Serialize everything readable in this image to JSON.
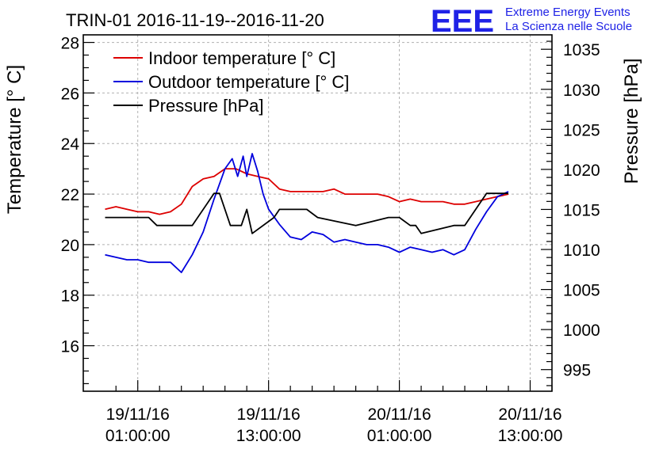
{
  "header": {
    "title": "TRIN-01 2016-11-19--2016-11-20",
    "logo_text": "EEE",
    "logo_line1": "Extreme Energy Events",
    "logo_line2": "La Scienza nelle Scuole"
  },
  "colors": {
    "indoor": "#dd0000",
    "outdoor": "#0000dd",
    "pressure": "#000000",
    "grid": "#b0b0b0",
    "logo": "#1f22e6"
  },
  "chart_data": {
    "type": "line",
    "title": "TRIN-01 2016-11-19--2016-11-20",
    "xlabel": "",
    "ylabel": "Temperature [° C]",
    "y2label": "Pressure [hPa]",
    "grid": true,
    "legend_position": "top-left",
    "xlim": [
      "2016-11-18 20:00",
      "2016-11-20 15:00"
    ],
    "ylim": [
      14.2,
      28.3
    ],
    "y2lim": [
      992.3,
      1036.8
    ],
    "x_ticks": [
      {
        "x": "2016-11-19 01:00",
        "line1": "19/11/16",
        "line2": "01:00:00"
      },
      {
        "x": "2016-11-19 13:00",
        "line1": "19/11/16",
        "line2": "13:00:00"
      },
      {
        "x": "2016-11-20 01:00",
        "line1": "20/11/16",
        "line2": "01:00:00"
      },
      {
        "x": "2016-11-20 13:00",
        "line1": "20/11/16",
        "line2": "13:00:00"
      }
    ],
    "y_ticks": [
      "16",
      "18",
      "20",
      "22",
      "24",
      "26",
      "28"
    ],
    "y2_ticks": [
      "995",
      "1000",
      "1005",
      "1010",
      "1015",
      "1020",
      "1025",
      "1030",
      "1035"
    ],
    "series": [
      {
        "name": "Indoor temperature [° C]",
        "axis": "left",
        "x": [
          "2016-11-18 22:00",
          "2016-11-18 23:00",
          "2016-11-19 00:00",
          "2016-11-19 01:00",
          "2016-11-19 02:00",
          "2016-11-19 03:00",
          "2016-11-19 04:00",
          "2016-11-19 05:00",
          "2016-11-19 06:00",
          "2016-11-19 07:00",
          "2016-11-19 08:00",
          "2016-11-19 09:00",
          "2016-11-19 10:00",
          "2016-11-19 11:00",
          "2016-11-19 12:00",
          "2016-11-19 13:00",
          "2016-11-19 14:00",
          "2016-11-19 15:00",
          "2016-11-19 16:00",
          "2016-11-19 17:00",
          "2016-11-19 18:00",
          "2016-11-19 19:00",
          "2016-11-19 20:00",
          "2016-11-19 21:00",
          "2016-11-19 22:00",
          "2016-11-19 23:00",
          "2016-11-20 00:00",
          "2016-11-20 01:00",
          "2016-11-20 02:00",
          "2016-11-20 03:00",
          "2016-11-20 04:00",
          "2016-11-20 05:00",
          "2016-11-20 06:00",
          "2016-11-20 07:00",
          "2016-11-20 08:00",
          "2016-11-20 09:00",
          "2016-11-20 10:00",
          "2016-11-20 11:00"
        ],
        "values": [
          21.4,
          21.5,
          21.4,
          21.3,
          21.3,
          21.2,
          21.3,
          21.6,
          22.3,
          22.6,
          22.7,
          23.0,
          23.0,
          22.8,
          22.7,
          22.6,
          22.2,
          22.1,
          22.1,
          22.1,
          22.1,
          22.2,
          22.0,
          22.0,
          22.0,
          22.0,
          21.9,
          21.7,
          21.8,
          21.7,
          21.7,
          21.7,
          21.6,
          21.6,
          21.7,
          21.8,
          21.9,
          22.0
        ]
      },
      {
        "name": "Outdoor temperature [° C]",
        "axis": "left",
        "x": [
          "2016-11-18 22:00",
          "2016-11-18 23:00",
          "2016-11-19 00:00",
          "2016-11-19 01:00",
          "2016-11-19 02:00",
          "2016-11-19 03:00",
          "2016-11-19 04:00",
          "2016-11-19 05:00",
          "2016-11-19 06:00",
          "2016-11-19 07:00",
          "2016-11-19 08:00",
          "2016-11-19 09:00",
          "2016-11-19 09:40",
          "2016-11-19 10:10",
          "2016-11-19 10:40",
          "2016-11-19 11:00",
          "2016-11-19 11:30",
          "2016-11-19 12:00",
          "2016-11-19 12:30",
          "2016-11-19 13:00",
          "2016-11-19 14:00",
          "2016-11-19 15:00",
          "2016-11-19 16:00",
          "2016-11-19 17:00",
          "2016-11-19 18:00",
          "2016-11-19 19:00",
          "2016-11-19 20:00",
          "2016-11-19 21:00",
          "2016-11-19 22:00",
          "2016-11-19 23:00",
          "2016-11-20 00:00",
          "2016-11-20 01:00",
          "2016-11-20 02:00",
          "2016-11-20 03:00",
          "2016-11-20 04:00",
          "2016-11-20 05:00",
          "2016-11-20 06:00",
          "2016-11-20 07:00",
          "2016-11-20 08:00",
          "2016-11-20 09:00",
          "2016-11-20 10:00",
          "2016-11-20 11:00"
        ],
        "values": [
          19.6,
          19.5,
          19.4,
          19.4,
          19.3,
          19.3,
          19.3,
          18.9,
          19.6,
          20.5,
          21.8,
          23.0,
          23.4,
          22.7,
          23.5,
          22.7,
          23.6,
          22.9,
          22.0,
          21.4,
          20.8,
          20.3,
          20.2,
          20.5,
          20.4,
          20.1,
          20.2,
          20.1,
          20.0,
          20.0,
          19.9,
          19.7,
          19.9,
          19.8,
          19.7,
          19.8,
          19.6,
          19.8,
          20.6,
          21.3,
          21.9,
          22.1
        ]
      },
      {
        "name": "Pressure [hPa]",
        "axis": "right",
        "x": [
          "2016-11-18 22:00",
          "2016-11-19 02:00",
          "2016-11-19 02:45",
          "2016-11-19 06:00",
          "2016-11-19 07:30",
          "2016-11-19 08:00",
          "2016-11-19 08:30",
          "2016-11-19 09:30",
          "2016-11-19 10:30",
          "2016-11-19 11:00",
          "2016-11-19 11:30",
          "2016-11-19 13:30",
          "2016-11-19 14:00",
          "2016-11-19 16:30",
          "2016-11-19 17:30",
          "2016-11-19 21:00",
          "2016-11-20 00:00",
          "2016-11-20 01:00",
          "2016-11-20 02:00",
          "2016-11-20 02:30",
          "2016-11-20 03:00",
          "2016-11-20 06:00",
          "2016-11-20 07:00",
          "2016-11-20 09:00",
          "2016-11-20 11:00"
        ],
        "values": [
          1014.0,
          1014.0,
          1013.0,
          1013.0,
          1016.0,
          1017.0,
          1017.0,
          1013.0,
          1013.0,
          1015.0,
          1012.0,
          1014.0,
          1015.0,
          1015.0,
          1014.0,
          1013.0,
          1014.0,
          1014.0,
          1013.0,
          1013.0,
          1012.0,
          1013.0,
          1013.0,
          1017.0,
          1017.0
        ]
      }
    ]
  }
}
